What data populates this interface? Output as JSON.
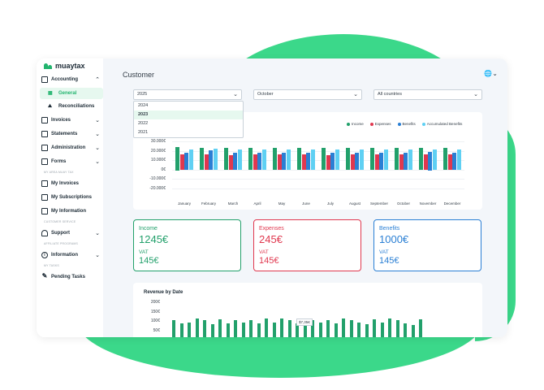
{
  "brand": {
    "name": "muaytax",
    "accent": "#22b46e"
  },
  "sidebar": {
    "accounting": "Accounting",
    "general": "General",
    "reconciliations": "Reconciliations",
    "invoices": "Invoices",
    "statements": "Statements",
    "administration": "Administration",
    "forms": "Forms",
    "section_my_area": "MY AREA MUAY TAX",
    "my_invoices": "My Invoices",
    "my_subscriptions": "My Subscriptions",
    "my_information": "My Information",
    "section_customer_service": "CUSTOMER SERVICE",
    "support": "Support",
    "section_affiliate": "AFFILIATE PROGRAMS",
    "information": "Information",
    "section_tasks": "MY TASKS",
    "pending_tasks": "Pending Tasks"
  },
  "header": {
    "title": "Customer",
    "language_icon": "globe-icon"
  },
  "filters": {
    "year": "2025",
    "year_options": [
      "2024",
      "2023",
      "2022",
      "2021"
    ],
    "year_highlighted": "2023",
    "month": "October",
    "country": "All countries"
  },
  "legend": [
    "Income",
    "Expenses",
    "Benefits",
    "Accumulated Benefits"
  ],
  "colors": {
    "income": "#22a06b",
    "expenses": "#e0384f",
    "benefits": "#2a7fd4",
    "accumulated": "#5fd0f3"
  },
  "chart_data": {
    "type": "bar",
    "categories": [
      "January",
      "February",
      "March",
      "April",
      "May",
      "June",
      "July",
      "August",
      "September",
      "October",
      "November",
      "December"
    ],
    "yticks": [
      "30.000€",
      "20.000€",
      "10.000€",
      "0€",
      "-10.000€",
      "-20.000€"
    ],
    "ylim": [
      -20000,
      30000
    ],
    "series": [
      {
        "name": "Income",
        "values": [
          25000,
          24000,
          24000,
          24000,
          24000,
          24000,
          24000,
          24000,
          24000,
          24000,
          24000,
          24000
        ]
      },
      {
        "name": "Expenses",
        "values": [
          17000,
          17000,
          16000,
          17000,
          17000,
          17000,
          16000,
          17000,
          17000,
          17000,
          17000,
          17000
        ]
      },
      {
        "name": "Benefits",
        "values": [
          19000,
          21000,
          19000,
          19000,
          19000,
          19000,
          19000,
          19000,
          19000,
          19000,
          20000,
          19000
        ]
      },
      {
        "name": "Accumulated Benefits",
        "values": [
          22000,
          23000,
          22000,
          22000,
          22000,
          22000,
          22000,
          22000,
          22000,
          22000,
          22000,
          22000
        ]
      }
    ]
  },
  "stats": {
    "income": {
      "label": "Income",
      "value": "1245€",
      "vat_label": "VAT",
      "vat": "145€"
    },
    "expenses": {
      "label": "Expenses",
      "value": "245€",
      "vat_label": "VAT",
      "vat": "145€"
    },
    "benefits": {
      "label": "Benefits",
      "value": "1000€",
      "vat_label": "VAT",
      "vat": "145€"
    }
  },
  "revenue": {
    "title": "Revenue by Date",
    "yticks": [
      "200€",
      "150€",
      "100€",
      "50€"
    ],
    "tooltip": "$7,35€",
    "bars": [
      90,
      75,
      80,
      100,
      90,
      70,
      95,
      75,
      90,
      80,
      90,
      75,
      100,
      80,
      100,
      90,
      75,
      95,
      90,
      80,
      90,
      75,
      100,
      90,
      80,
      70,
      95,
      80,
      100,
      90,
      75,
      65,
      95
    ]
  }
}
